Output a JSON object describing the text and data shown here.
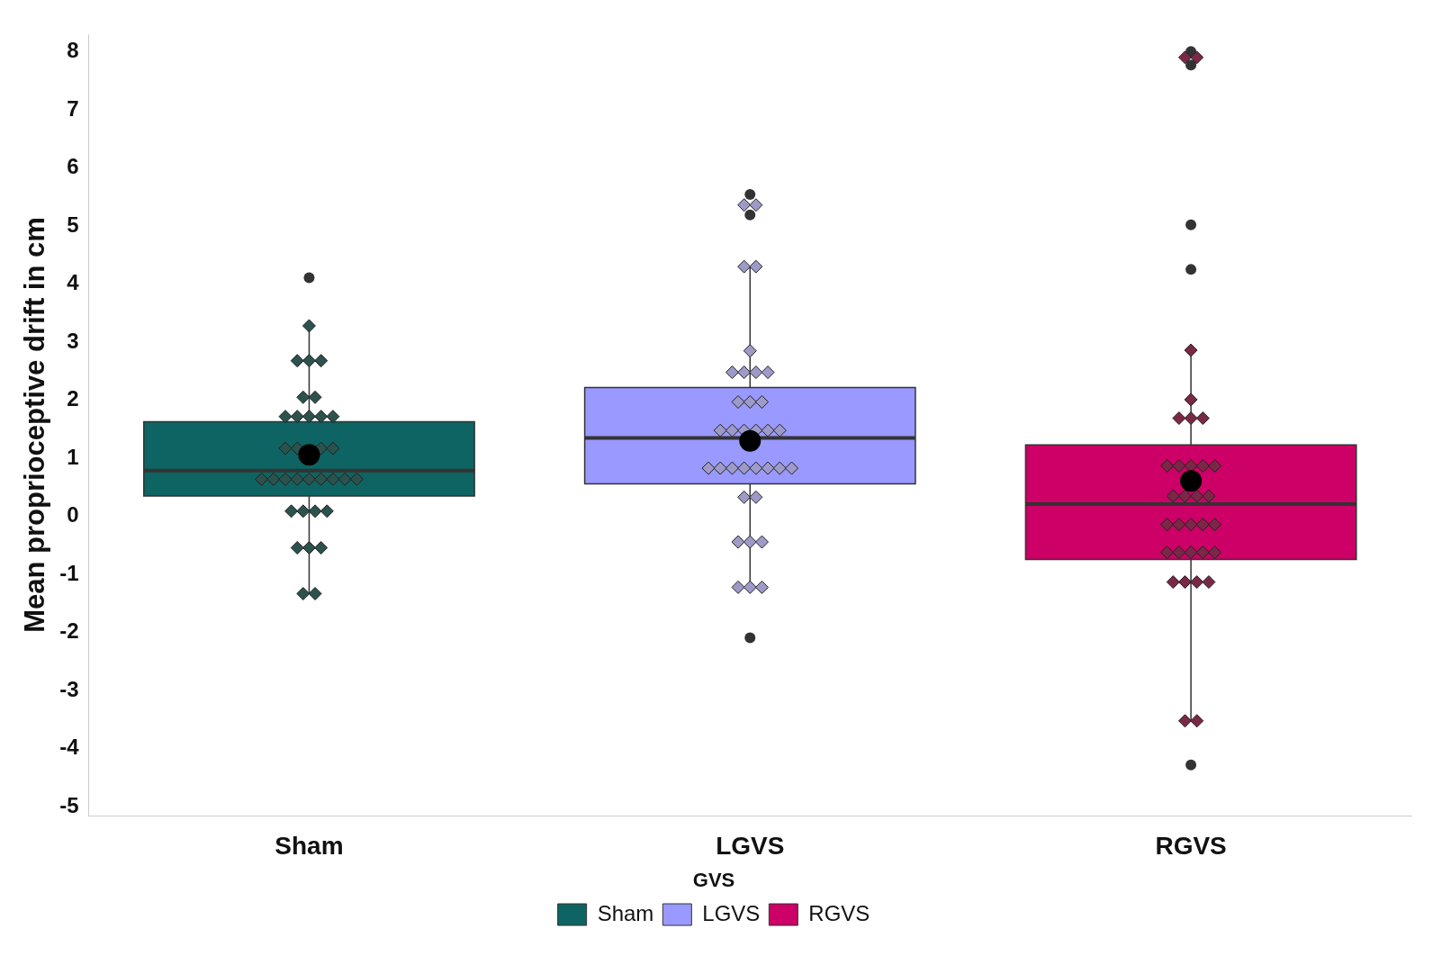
{
  "chart_data": {
    "type": "box",
    "ylabel": "Mean proprioceptive drift in cm",
    "categories": [
      "Sham",
      "LGVS",
      "RGVS"
    ],
    "series": [
      {
        "name": "Sham",
        "color": "#0e6462",
        "boxes": [
          {
            "low": -1.33,
            "q1": 0.35,
            "median": 0.79,
            "q3": 1.63,
            "high": 3.28,
            "mean": 1.06,
            "outliers": [
              4.11
            ]
          },
          null,
          null
        ]
      },
      {
        "name": "LGVS",
        "color": "#9999ff",
        "boxes": [
          null,
          {
            "low": -1.22,
            "q1": 0.56,
            "median": 1.35,
            "q3": 2.22,
            "high": 4.3,
            "mean": 1.3,
            "outliers": [
              5.54,
              5.19,
              -2.09
            ]
          },
          null
        ]
      },
      {
        "name": "RGVS",
        "color": "#cc0066",
        "boxes": [
          null,
          null,
          {
            "low": -3.52,
            "q1": -0.74,
            "median": 0.21,
            "q3": 1.23,
            "high": 2.86,
            "mean": 0.61,
            "outliers": [
              8.0,
              7.77,
              5.02,
              4.25,
              -4.28
            ]
          }
        ]
      },
      {
        "type": "scatter",
        "color": "#2b524c",
        "x": [
          "Sham",
          "Sham",
          "Sham",
          "Sham",
          "Sham",
          "Sham",
          "Sham",
          "Sham",
          "Sham",
          "Sham",
          "Sham",
          "Sham",
          "Sham",
          "Sham",
          "Sham",
          "Sham",
          "Sham",
          "Sham",
          "Sham",
          "Sham",
          "Sham",
          "Sham",
          "Sham",
          "Sham",
          "Sham",
          "Sham",
          "Sham",
          "Sham",
          "Sham",
          "Sham",
          "Sham",
          "Sham",
          "Sham",
          "Sham"
        ],
        "values": [
          3.28,
          2.68,
          2.68,
          2.68,
          2.05,
          2.05,
          1.72,
          1.72,
          1.72,
          1.72,
          1.72,
          1.17,
          1.17,
          null,
          1.17,
          1.17,
          0.64,
          0.64,
          0.64,
          0.64,
          0.64,
          0.64,
          0.64,
          0.64,
          0.64,
          0.09,
          0.09,
          0.09,
          0.09,
          -0.54,
          -0.54,
          -0.54,
          -1.33,
          -1.33
        ]
      },
      {
        "type": "scatter",
        "color": "#9e9ac8",
        "x": [
          "LGVS",
          "LGVS",
          "LGVS",
          "LGVS",
          "LGVS",
          "LGVS",
          "LGVS",
          "LGVS",
          "LGVS",
          "LGVS",
          "LGVS",
          "LGVS",
          "LGVS",
          "LGVS",
          "LGVS",
          "LGVS",
          "LGVS",
          "LGVS",
          "LGVS",
          "LGVS",
          "LGVS",
          "LGVS",
          "LGVS",
          "LGVS",
          "LGVS",
          "LGVS",
          "LGVS",
          "LGVS",
          "LGVS",
          "LGVS",
          "LGVS",
          "LGVS",
          "LGVS",
          "LGVS"
        ],
        "values": [
          5.36,
          5.36,
          4.3,
          4.3,
          2.85,
          2.48,
          2.48,
          2.48,
          2.48,
          1.97,
          1.97,
          1.97,
          1.48,
          1.48,
          1.48,
          1.48,
          1.48,
          1.48,
          0.83,
          0.83,
          0.83,
          0.83,
          0.83,
          0.83,
          0.83,
          0.83,
          0.33,
          0.33,
          -0.44,
          -0.44,
          -0.44,
          -1.22,
          -1.22,
          -1.22
        ]
      },
      {
        "type": "scatter",
        "color": "#7b2846",
        "x": [
          "RGVS",
          "RGVS",
          "RGVS",
          "RGVS",
          "RGVS",
          "RGVS",
          "RGVS",
          "RGVS",
          "RGVS",
          "RGVS",
          "RGVS",
          "RGVS",
          "RGVS",
          "RGVS",
          "RGVS",
          "RGVS",
          "RGVS",
          "RGVS",
          "RGVS",
          "RGVS",
          "RGVS",
          "RGVS",
          "RGVS",
          "RGVS",
          "RGVS",
          "RGVS",
          "RGVS",
          "RGVS",
          "RGVS",
          "RGVS",
          "RGVS",
          "RGVS"
        ],
        "values": [
          7.9,
          7.9,
          2.86,
          2.01,
          1.69,
          1.69,
          1.69,
          0.87,
          0.87,
          0.87,
          0.87,
          0.87,
          0.35,
          0.35,
          0.35,
          0.35,
          -0.14,
          -0.14,
          -0.14,
          -0.14,
          -0.14,
          -0.62,
          -0.62,
          -0.62,
          -0.62,
          -0.62,
          -1.13,
          -1.13,
          -1.13,
          -1.13,
          -3.52,
          -3.52
        ]
      }
    ],
    "marker": "diamond",
    "ylim": [
      -5.15,
      8.3
    ],
    "yticks": [
      -5,
      -4,
      -3,
      -2,
      -1,
      0,
      1,
      2,
      3,
      4,
      5,
      6,
      7,
      8
    ],
    "legend": "bottom",
    "legend_title": "GVS"
  }
}
